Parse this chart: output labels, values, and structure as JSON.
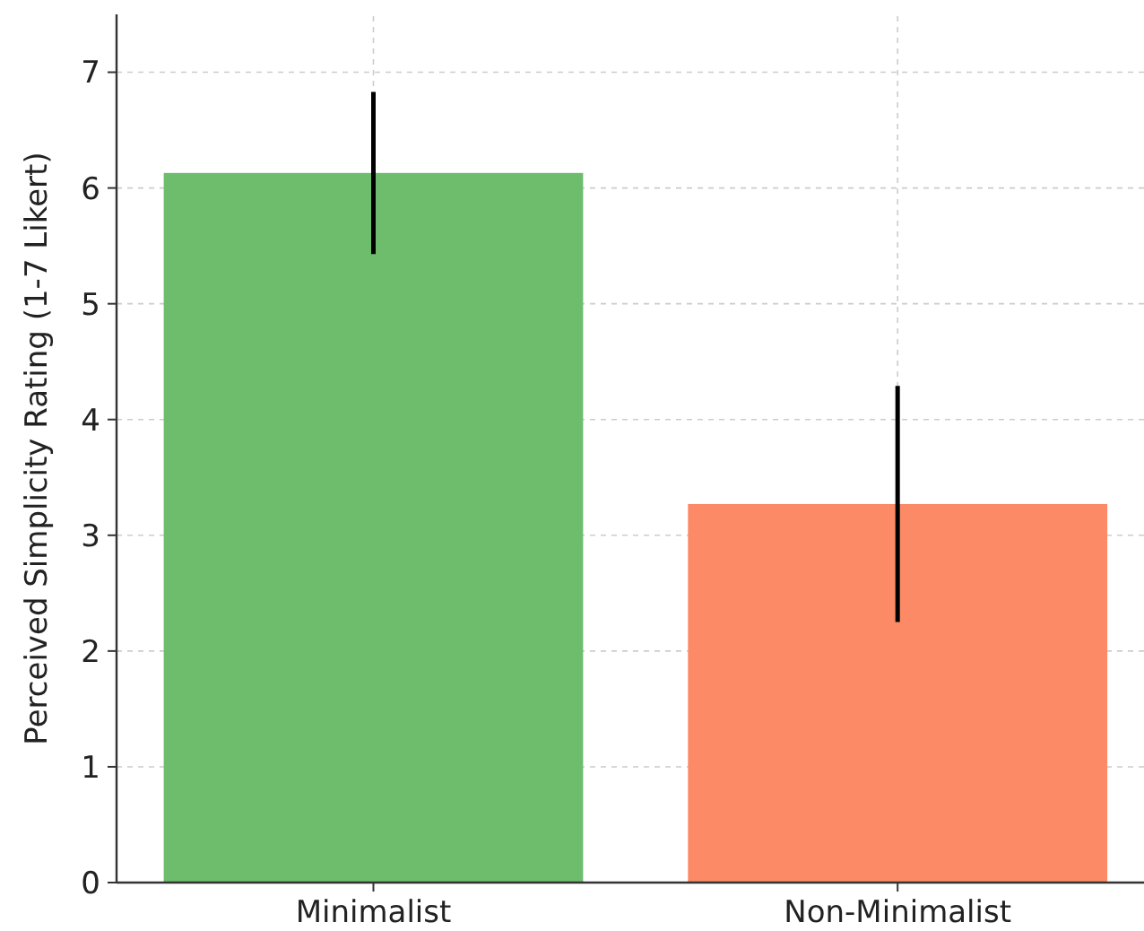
{
  "chart_data": {
    "type": "bar",
    "ylabel": "Perceived Simplicity Rating (1-7 Likert)",
    "categories": [
      "Minimalist",
      "Non-Minimalist"
    ],
    "values": [
      6.13,
      3.27
    ],
    "errors": [
      0.7,
      1.02
    ],
    "colors": [
      "#6dbd6d",
      "#fc8a66"
    ],
    "ylim": [
      0,
      7.5
    ],
    "yticks": [
      0,
      1,
      2,
      3,
      4,
      5,
      6,
      7
    ],
    "grid": true
  }
}
